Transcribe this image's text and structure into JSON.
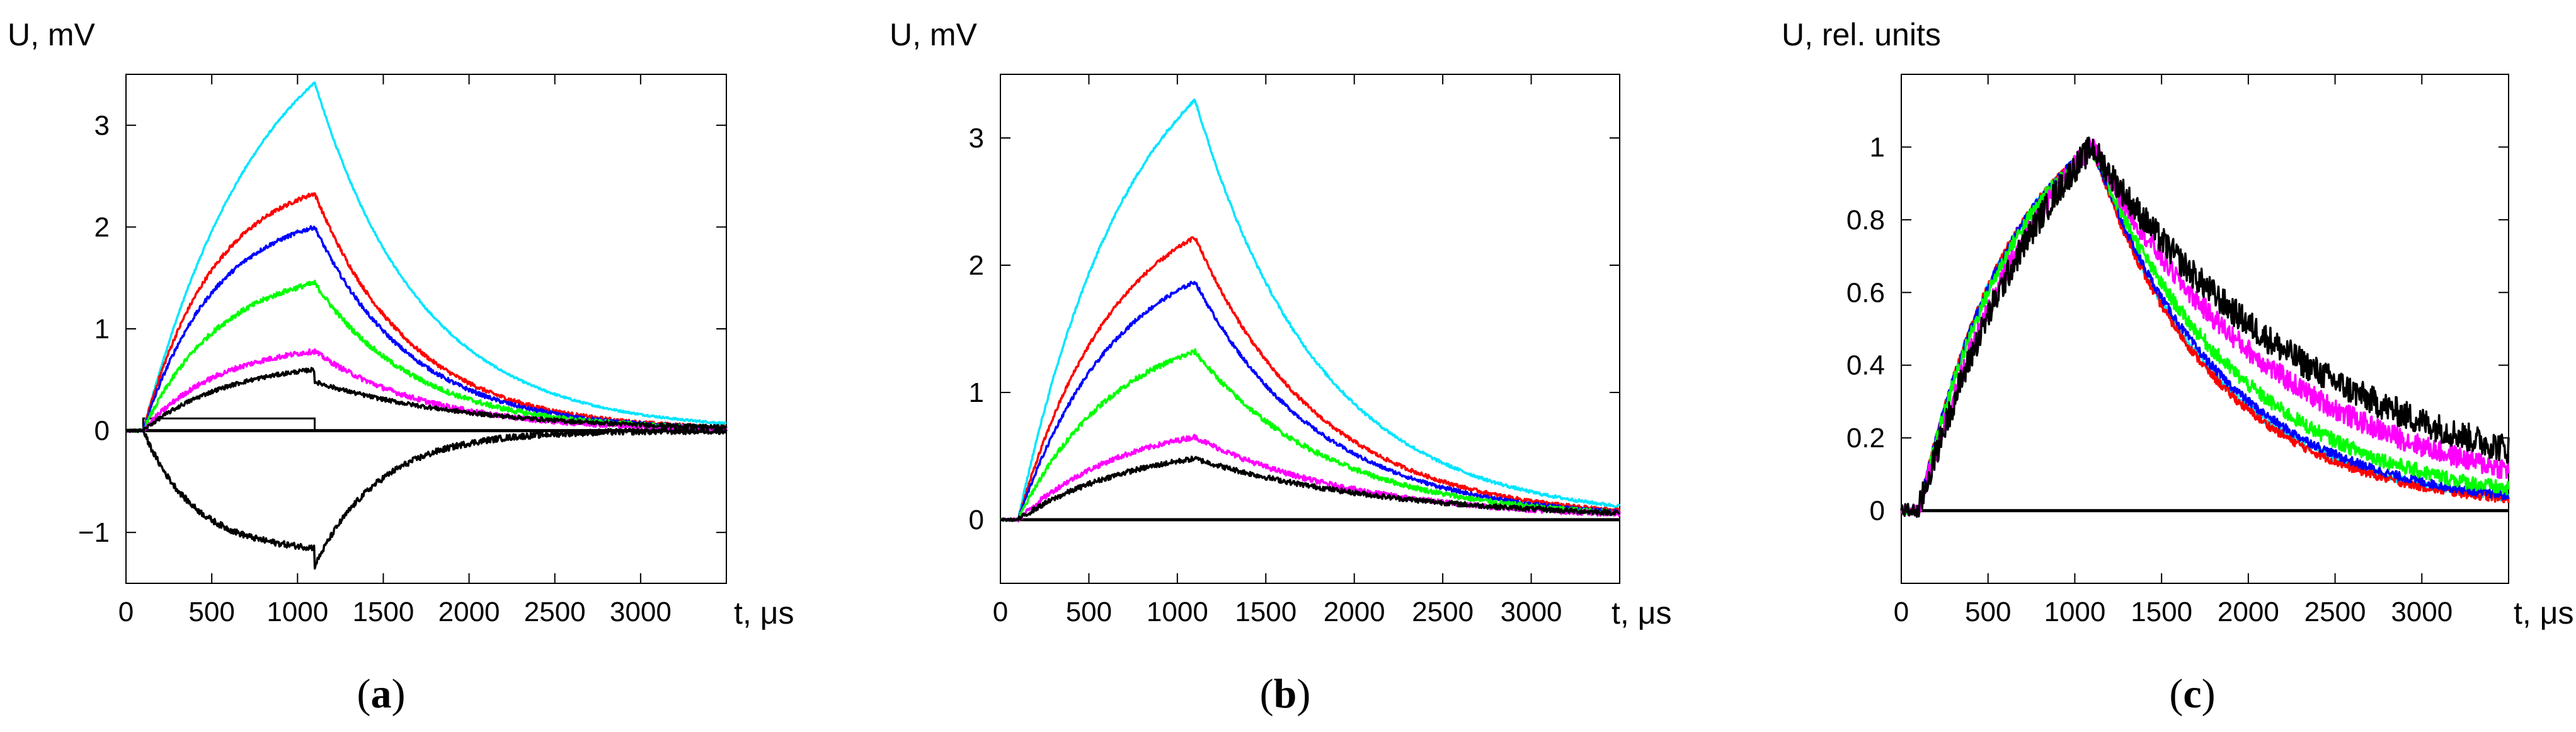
{
  "colors": {
    "cyan": "#00e5ff",
    "red": "#ff0000",
    "blue": "#0000ff",
    "green": "#00ff00",
    "magenta": "#ff00ff",
    "black": "#000000"
  },
  "chart_data": [
    {
      "id": "a",
      "type": "line",
      "panel_label": "(a)",
      "panel_letter": "a",
      "ylabel": "U, mV",
      "xlabel": "t, μs",
      "xlim": [
        0,
        3500
      ],
      "ylim": [
        -1.5,
        3.5
      ],
      "xticks": [
        0,
        500,
        1000,
        1500,
        2000,
        2500,
        3000
      ],
      "yticks": [
        -1,
        0,
        1,
        2,
        3
      ],
      "ytick_labels": [
        "−1",
        "0",
        "1",
        "2",
        "3"
      ],
      "pulse": {
        "start": 100,
        "end": 1100,
        "level": 0.12
      },
      "series": [
        {
          "color": "cyan",
          "t0": 100,
          "t1": 1100,
          "peak": 3.42,
          "tau_rise": 700,
          "tau_decay": 620,
          "baseline": 0,
          "noise": 0.01,
          "step": 0
        },
        {
          "color": "red",
          "t0": 100,
          "t1": 1100,
          "peak": 2.33,
          "tau_rise": 420,
          "tau_decay": 560,
          "baseline": 0,
          "noise": 0.02,
          "step": 0
        },
        {
          "color": "blue",
          "t0": 100,
          "t1": 1100,
          "peak": 2.0,
          "tau_rise": 420,
          "tau_decay": 560,
          "baseline": 0,
          "noise": 0.02,
          "step": 0
        },
        {
          "color": "green",
          "t0": 100,
          "t1": 1100,
          "peak": 1.45,
          "tau_rise": 450,
          "tau_decay": 580,
          "baseline": 0,
          "noise": 0.025,
          "step": 0
        },
        {
          "color": "magenta",
          "t0": 100,
          "t1": 1100,
          "peak": 0.78,
          "tau_rise": 450,
          "tau_decay": 650,
          "baseline": 0,
          "noise": 0.025,
          "step": 0
        },
        {
          "color": "black",
          "t0": 100,
          "t1": 1100,
          "peak": 0.6,
          "tau_rise": 500,
          "tau_decay": 900,
          "baseline": 0,
          "noise": 0.02,
          "step": -0.12
        },
        {
          "color": "black",
          "t0": 100,
          "t1": 1100,
          "peak": -1.15,
          "tau_rise": 300,
          "tau_decay": 380,
          "baseline": 0,
          "noise": 0.03,
          "step": -0.18
        }
      ]
    },
    {
      "id": "b",
      "type": "line",
      "panel_label": "(b)",
      "panel_letter": "b",
      "ylabel": "U, mV",
      "xlabel": "t, μs",
      "xlim": [
        0,
        3500
      ],
      "ylim": [
        -0.5,
        3.5
      ],
      "xticks": [
        0,
        500,
        1000,
        1500,
        2000,
        2500,
        3000
      ],
      "yticks": [
        0,
        1,
        2,
        3
      ],
      "ytick_labels": [
        "0",
        "1",
        "2",
        "3"
      ],
      "series": [
        {
          "color": "cyan",
          "t0": 100,
          "t1": 1100,
          "peak": 3.3,
          "tau_rise": 650,
          "tau_decay": 700,
          "baseline": 0,
          "noise": 0.012,
          "step": 0
        },
        {
          "color": "red",
          "t0": 100,
          "t1": 1100,
          "peak": 2.22,
          "tau_rise": 550,
          "tau_decay": 700,
          "baseline": 0,
          "noise": 0.015,
          "step": 0
        },
        {
          "color": "blue",
          "t0": 100,
          "t1": 1100,
          "peak": 1.87,
          "tau_rise": 550,
          "tau_decay": 700,
          "baseline": 0,
          "noise": 0.015,
          "step": 0
        },
        {
          "color": "green",
          "t0": 100,
          "t1": 1100,
          "peak": 1.32,
          "tau_rise": 550,
          "tau_decay": 750,
          "baseline": 0,
          "noise": 0.02,
          "step": 0
        },
        {
          "color": "magenta",
          "t0": 100,
          "t1": 1100,
          "peak": 0.65,
          "tau_rise": 600,
          "tau_decay": 900,
          "baseline": 0,
          "noise": 0.02,
          "step": 0
        },
        {
          "color": "black",
          "t0": 100,
          "t1": 1100,
          "peak": 0.48,
          "tau_rise": 650,
          "tau_decay": 1100,
          "baseline": 0,
          "noise": 0.02,
          "step": 0
        }
      ]
    },
    {
      "id": "c",
      "type": "line",
      "panel_label": "(c)",
      "panel_letter": "c",
      "ylabel": "U, rel. units",
      "xlabel": "t, μs",
      "xlim": [
        0,
        3500
      ],
      "ylim": [
        -0.2,
        1.2
      ],
      "xticks": [
        0,
        500,
        1000,
        1500,
        2000,
        2500,
        3000
      ],
      "yticks": [
        0,
        0.2,
        0.4,
        0.6,
        0.8,
        1
      ],
      "ytick_labels": [
        "0",
        "0.2",
        "0.4",
        "0.6",
        "0.8",
        "1"
      ],
      "series": [
        {
          "color": "cyan",
          "t0": 100,
          "t1": 1100,
          "peak": 1.0,
          "tau_rise": 550,
          "tau_decay": 720,
          "baseline": 0,
          "noise": 0.01,
          "step": 0
        },
        {
          "color": "red",
          "t0": 100,
          "t1": 1100,
          "peak": 1.0,
          "tau_rise": 550,
          "tau_decay": 700,
          "baseline": 0,
          "noise": 0.012,
          "step": 0
        },
        {
          "color": "blue",
          "t0": 100,
          "t1": 1100,
          "peak": 1.0,
          "tau_rise": 560,
          "tau_decay": 750,
          "baseline": 0,
          "noise": 0.012,
          "step": 0
        },
        {
          "color": "green",
          "t0": 100,
          "t1": 1100,
          "peak": 1.0,
          "tau_rise": 600,
          "tau_decay": 850,
          "baseline": 0,
          "noise": 0.02,
          "step": 0
        },
        {
          "color": "magenta",
          "t0": 100,
          "t1": 1100,
          "peak": 1.0,
          "tau_rise": 800,
          "tau_decay": 1100,
          "baseline": 0,
          "noise": 0.03,
          "step": 0
        },
        {
          "color": "black",
          "t0": 100,
          "t1": 1100,
          "peak": 1.0,
          "tau_rise": 900,
          "tau_decay": 1350,
          "baseline": 0,
          "noise": 0.04,
          "step": 0
        }
      ]
    }
  ]
}
